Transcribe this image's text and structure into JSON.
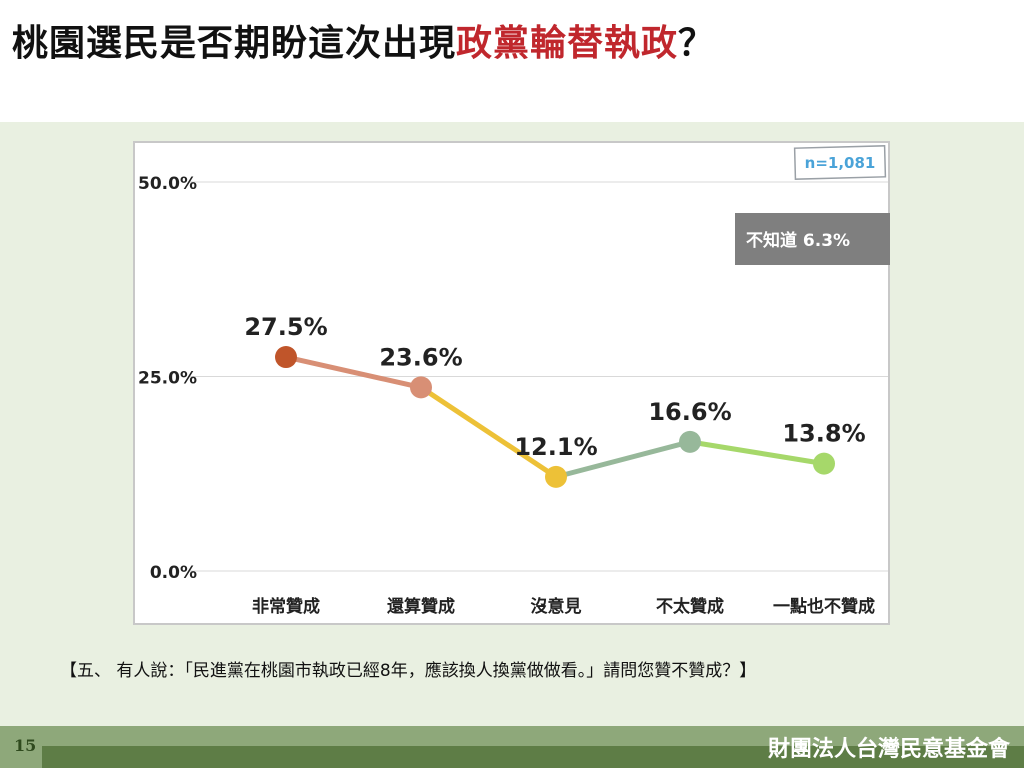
{
  "title": {
    "prefix": "桃園選民是否期盼這次出現",
    "highlight": "政黨輪替執政",
    "suffix": "？"
  },
  "question": "【五、 有人說：「民進黨在桃園市執政已經8年，應該換人換黨做做看。」請問您贊不贊成？】",
  "footer": {
    "page_number": "15",
    "organization": "財團法人台灣民意基金會"
  },
  "chart_data": {
    "type": "line",
    "categories": [
      "非常贊成",
      "還算贊成",
      "沒意見",
      "不太贊成",
      "一點也不贊成"
    ],
    "values": [
      27.5,
      23.6,
      12.1,
      16.6,
      13.8
    ],
    "value_labels": [
      "27.5%",
      "23.6%",
      "12.1%",
      "16.6%",
      "13.8%"
    ],
    "point_colors": [
      "#c0552a",
      "#d88f75",
      "#edc137",
      "#97b89a",
      "#a6d86a"
    ],
    "segment_colors": [
      "#d88f75",
      "#edc137",
      "#97b89a",
      "#a6d86a"
    ],
    "yticks": [
      "0.0%",
      "25.0%",
      "50.0%"
    ],
    "ylim": [
      0,
      50
    ],
    "grid": true,
    "sample_note": "n=1,081",
    "extra_box": "不知道 6.3%"
  }
}
